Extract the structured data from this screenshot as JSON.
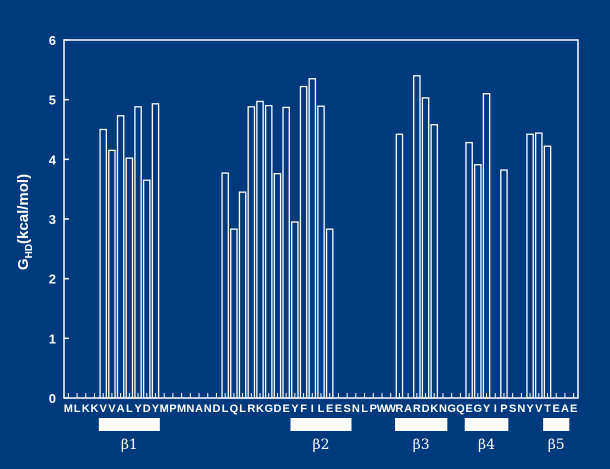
{
  "chart_data": {
    "type": "bar",
    "sequence": "MLKKVVALYDYMPMNANDLQLRKGDEYFILEESNLPWWRARDKNGQEGYIPSNYVTEAE",
    "values": [
      null,
      null,
      null,
      null,
      4.5,
      4.15,
      4.73,
      4.02,
      4.88,
      3.65,
      4.93,
      null,
      null,
      null,
      null,
      null,
      null,
      null,
      3.77,
      2.83,
      3.45,
      4.88,
      4.97,
      4.9,
      3.76,
      4.87,
      2.95,
      5.22,
      5.35,
      4.89,
      2.83,
      null,
      null,
      null,
      null,
      null,
      null,
      null,
      4.42,
      null,
      5.4,
      5.03,
      4.58,
      null,
      null,
      null,
      4.28,
      3.91,
      5.1,
      null,
      3.82,
      null,
      null,
      4.42,
      4.44,
      4.22,
      null,
      null,
      null
    ],
    "ylabel": {
      "main": "G",
      "sub": "HD",
      "unit": "(kcal/mol)"
    },
    "yticks": [
      "0",
      "1",
      "2",
      "3",
      "4",
      "5",
      "6"
    ],
    "ylim": [
      0,
      6
    ],
    "secondary_structure": [
      {
        "label": "β1",
        "start": 4,
        "end": 10
      },
      {
        "label": "β2",
        "start": 26,
        "end": 32
      },
      {
        "label": "β3",
        "start": 38,
        "end": 43
      },
      {
        "label": "β4",
        "start": 46,
        "end": 50
      },
      {
        "label": "β5",
        "start": 55,
        "end": 57
      }
    ]
  },
  "colors": {
    "background": "#003A7E",
    "foreground": "#ffffff"
  }
}
